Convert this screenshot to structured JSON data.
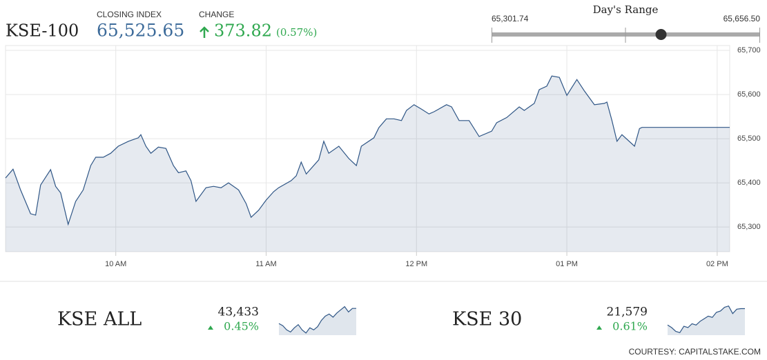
{
  "header": {
    "index": "KSE-100",
    "closing_label": "CLOSING INDEX",
    "closing": {
      "value": 65525.65,
      "label": "65,525.65"
    },
    "change_label": "CHANGE",
    "change": "373.82",
    "change_percent": "(0.57%)",
    "range": {
      "title": "Day's Range",
      "low": {
        "value": 65301.74,
        "label": "65,301.74"
      },
      "high": {
        "value": 65656.5,
        "label": "65,656.50"
      }
    }
  },
  "chart_data": {
    "type": "line",
    "x": [
      556,
      559,
      562,
      566,
      568,
      570,
      574,
      576,
      578,
      581,
      584,
      587,
      590,
      592,
      595,
      598,
      601,
      605,
      609,
      610,
      612,
      614,
      617,
      620,
      623,
      625,
      628,
      630,
      632,
      636,
      639,
      642,
      645,
      649,
      652,
      654,
      657,
      660,
      663,
      665,
      670,
      672,
      674,
      676,
      681,
      683,
      685,
      689,
      693,
      696,
      698,
      703,
      705,
      708,
      711,
      714,
      716,
      719,
      722,
      725,
      727,
      732,
      734,
      737,
      741,
      745,
      750,
      752,
      756,
      761,
      763,
      767,
      769,
      772,
      774,
      777,
      780,
      784,
      787,
      791,
      795,
      796,
      798,
      800,
      802,
      807,
      809,
      810,
      845
    ],
    "series": [
      {
        "name": "KSE-100",
        "color": "#2e5585",
        "values": [
          65411,
          65431,
          65384,
          65330,
          65327,
          65395,
          65430,
          65392,
          65377,
          65306,
          65358,
          65384,
          65439,
          65458,
          65458,
          65467,
          65483,
          65494,
          65502,
          65509,
          65483,
          65467,
          65481,
          65478,
          65439,
          65423,
          65427,
          65405,
          65358,
          65389,
          65392,
          65389,
          65400,
          65384,
          65353,
          65322,
          65338,
          65361,
          65380,
          65389,
          65405,
          65416,
          65447,
          65420,
          65452,
          65494,
          65467,
          65483,
          65455,
          65439,
          65483,
          65502,
          65525,
          65545,
          65545,
          65541,
          65564,
          65577,
          65567,
          65556,
          65561,
          65577,
          65572,
          65541,
          65541,
          65505,
          65517,
          65536,
          65548,
          65572,
          65564,
          65580,
          65611,
          65619,
          65642,
          65639,
          65598,
          65634,
          65608,
          65577,
          65580,
          65583,
          65541,
          65494,
          65509,
          65483,
          65523,
          65525.65,
          65525.65
        ]
      }
    ],
    "xlim": [
      556,
      845
    ],
    "xticks": [
      {
        "value": 600,
        "label": "10 AM"
      },
      {
        "value": 660,
        "label": "11 AM"
      },
      {
        "value": 720,
        "label": "12 PM"
      },
      {
        "value": 780,
        "label": "01 PM"
      },
      {
        "value": 840,
        "label": "02 PM"
      }
    ],
    "ylim": [
      65244,
      65711
    ],
    "yticks": [
      {
        "value": 65300,
        "label": "65,300"
      },
      {
        "value": 65400,
        "label": "65,400"
      },
      {
        "value": 65500,
        "label": "65,500"
      },
      {
        "value": 65600,
        "label": "65,600"
      },
      {
        "value": 65700,
        "label": "65,700"
      }
    ],
    "grid": true
  },
  "markets": [
    {
      "name": "KSE ALL",
      "value": "43,433",
      "change": "0.45%",
      "type": "line",
      "values": [
        43290,
        43270,
        43230,
        43210,
        43250,
        43280,
        43230,
        43200,
        43250,
        43230,
        43260,
        43320,
        43360,
        43380,
        43350,
        43390,
        43420,
        43450,
        43400,
        43433,
        43433
      ],
      "ylim": [
        43180,
        43480
      ]
    },
    {
      "name": "KSE 30",
      "value": "21,579",
      "change": "0.61%",
      "type": "line",
      "values": [
        21450,
        21430,
        21400,
        21390,
        21440,
        21430,
        21460,
        21450,
        21480,
        21500,
        21520,
        21510,
        21550,
        21560,
        21590,
        21600,
        21540,
        21575,
        21579,
        21579
      ],
      "ylim": [
        21370,
        21620
      ]
    }
  ],
  "footer": "COURTESY: CAPITALSTAKE.COM"
}
